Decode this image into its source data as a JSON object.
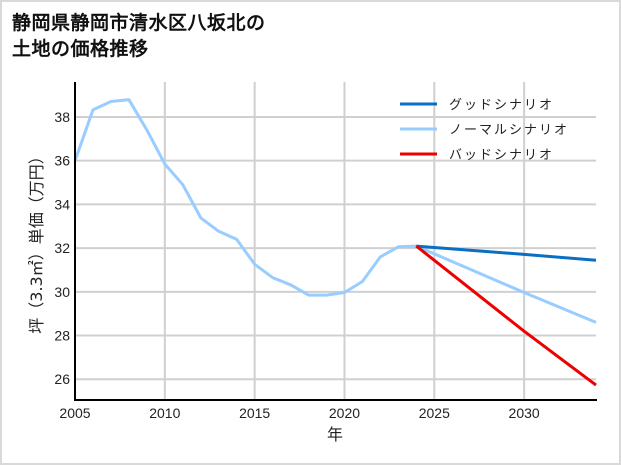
{
  "title": {
    "line1": "静岡県静岡市清水区八坂北の",
    "line2": "土地の価格推移"
  },
  "chart_data": {
    "type": "line",
    "title": "静岡県静岡市清水区八坂北の土地の価格推移",
    "xlabel": "年",
    "ylabel": "坪（3.3㎡）単価（万円）",
    "xlim": [
      2005,
      2034
    ],
    "ylim": [
      25.05,
      39.6
    ],
    "xticks": [
      2005,
      2010,
      2015,
      2020,
      2025,
      2030
    ],
    "yticks": [
      26,
      28,
      30,
      32,
      34,
      36,
      38
    ],
    "grid": true,
    "legend_position": "upper right",
    "colors": {
      "good": "#0a6fc2",
      "normal": "#99ccff",
      "bad": "#ee0000",
      "grid": "#d0d0d0",
      "axis": "#000000"
    },
    "series": [
      {
        "name": "グッドシナリオ",
        "key": "good",
        "x": [
          2024,
          2030,
          2034
        ],
        "values": [
          32.09,
          31.71,
          31.44
        ]
      },
      {
        "name": "ノーマルシナリオ",
        "key": "normal",
        "x": [
          2005,
          2006,
          2007,
          2008,
          2009,
          2010,
          2011,
          2012,
          2013,
          2014,
          2015,
          2016,
          2017,
          2018,
          2019,
          2020,
          2021,
          2022,
          2023,
          2024,
          2030,
          2034
        ],
        "values": [
          36.0,
          38.33,
          38.71,
          38.79,
          37.4,
          35.85,
          34.9,
          33.38,
          32.77,
          32.4,
          31.26,
          30.65,
          30.32,
          29.85,
          29.85,
          29.97,
          30.47,
          31.6,
          32.06,
          32.09,
          29.97,
          28.6
        ]
      },
      {
        "name": "バッドシナリオ",
        "key": "bad",
        "x": [
          2024,
          2030,
          2034
        ],
        "values": [
          32.09,
          28.2,
          25.73
        ]
      }
    ]
  }
}
